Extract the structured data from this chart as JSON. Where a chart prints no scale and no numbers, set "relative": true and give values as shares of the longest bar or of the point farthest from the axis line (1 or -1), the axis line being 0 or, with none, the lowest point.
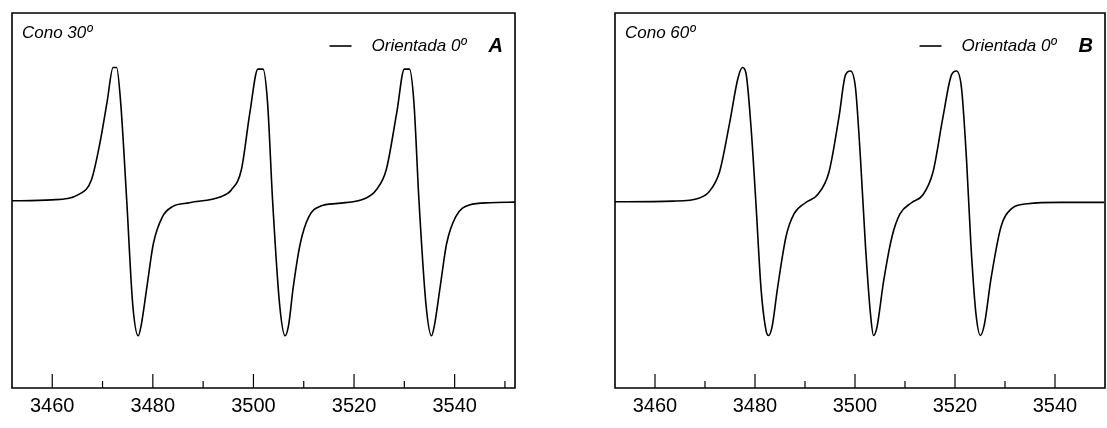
{
  "chart_data": [
    {
      "type": "line",
      "title": "Cono 30º",
      "annotations": [
        "A"
      ],
      "relative": true,
      "legend": "top right",
      "tick_labels": "x",
      "grid": false,
      "marker": "none",
      "line_style": "solid",
      "xlim": [
        3452,
        3552
      ],
      "xticks": [
        3460,
        {
          "value": 3470,
          "label": null
        },
        3480,
        {
          "value": 3490,
          "label": null
        },
        3500,
        {
          "value": 3510,
          "label": null
        },
        3520,
        {
          "value": 3530,
          "label": null
        },
        3540,
        {
          "value": 3550,
          "label": null
        }
      ],
      "series": [
        {
          "name": "Orientada 0º",
          "color": "#000000",
          "x": [
            3452.0,
            3459.9,
            3465.4,
            3467.8,
            3469.5,
            3470.9,
            3472.1,
            3472.8,
            3473.6,
            3474.8,
            3476.0,
            3477.1,
            3477.7,
            3478.8,
            3480.1,
            3481.9,
            3483.9,
            3487.3,
            3493.5,
            3495.6,
            3497.6,
            3499.3,
            3500.9,
            3501.9,
            3502.8,
            3503.8,
            3505.2,
            3506.3,
            3507.0,
            3507.9,
            3509.3,
            3511.0,
            3513.4,
            3516.8,
            3522.3,
            3524.4,
            3526.4,
            3528.5,
            3530.0,
            3531.0,
            3531.9,
            3532.9,
            3534.3,
            3535.4,
            3536.0,
            3537.1,
            3538.4,
            3540.2,
            3542.9,
            3547.0,
            3552.0
          ],
          "values": [
            0.584,
            0.587,
            0.605,
            0.65,
            0.766,
            0.892,
            1.0,
            1.0,
            0.892,
            0.587,
            0.261,
            0.163,
            0.197,
            0.313,
            0.45,
            0.534,
            0.566,
            0.578,
            0.597,
            0.618,
            0.681,
            0.86,
            0.995,
            0.995,
            0.892,
            0.587,
            0.261,
            0.163,
            0.197,
            0.313,
            0.45,
            0.534,
            0.568,
            0.576,
            0.592,
            0.618,
            0.681,
            0.86,
            0.995,
            0.995,
            0.892,
            0.587,
            0.261,
            0.163,
            0.197,
            0.313,
            0.45,
            0.534,
            0.571,
            0.578,
            0.58
          ]
        }
      ]
    },
    {
      "type": "line",
      "title": "Cono 60º",
      "annotations": [
        "B"
      ],
      "relative": true,
      "legend": "top right",
      "tick_labels": "x",
      "grid": false,
      "marker": "none",
      "line_style": "solid",
      "xlim": [
        3452,
        3550
      ],
      "xticks": [
        3460,
        {
          "value": 3470,
          "label": null
        },
        3480,
        {
          "value": 3490,
          "label": null
        },
        3500,
        {
          "value": 3510,
          "label": null
        },
        3520,
        {
          "value": 3530,
          "label": null
        },
        3540
      ],
      "series": [
        {
          "name": "Orientada 0º",
          "color": "#000000",
          "x": [
            3452.0,
            3463.6,
            3468.9,
            3470.9,
            3472.9,
            3474.9,
            3476.6,
            3477.5,
            3478.2,
            3479.2,
            3480.2,
            3481.2,
            3482.2,
            3482.7,
            3483.4,
            3484.5,
            3486.2,
            3487.8,
            3490.1,
            3492.5,
            3494.8,
            3496.8,
            3498.1,
            3499.1,
            3500.1,
            3501.1,
            3502.1,
            3503.1,
            3503.7,
            3504.4,
            3505.7,
            3507.4,
            3509.0,
            3511.3,
            3513.6,
            3515.6,
            3517.6,
            3519.3,
            3520.3,
            3521.3,
            3522.3,
            3523.2,
            3524.2,
            3525.1,
            3525.9,
            3527.2,
            3529.2,
            3531.2,
            3534.5,
            3541.1,
            3549.8
          ],
          "values": [
            0.581,
            0.583,
            0.593,
            0.614,
            0.674,
            0.825,
            0.967,
            1.0,
            0.982,
            0.815,
            0.573,
            0.311,
            0.18,
            0.164,
            0.19,
            0.311,
            0.472,
            0.543,
            0.578,
            0.603,
            0.674,
            0.846,
            0.977,
            0.989,
            0.936,
            0.714,
            0.442,
            0.23,
            0.164,
            0.19,
            0.331,
            0.472,
            0.543,
            0.578,
            0.603,
            0.674,
            0.846,
            0.977,
            0.989,
            0.936,
            0.714,
            0.442,
            0.23,
            0.164,
            0.2,
            0.341,
            0.503,
            0.558,
            0.575,
            0.579,
            0.579
          ]
        }
      ]
    }
  ]
}
